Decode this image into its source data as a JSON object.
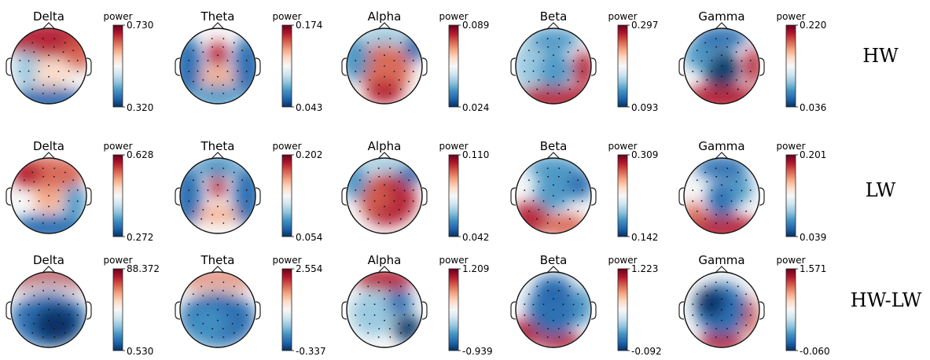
{
  "colormap": {
    "name": "RdBu_r",
    "stops": [
      "#053061",
      "#2166ac",
      "#4393c3",
      "#92c5de",
      "#d1e5f0",
      "#f7f7f7",
      "#fddbc7",
      "#f4a582",
      "#d6604d",
      "#b2182b",
      "#67001f"
    ]
  },
  "colorbar_label": "power",
  "rows": [
    {
      "label": "HW",
      "bands": [
        {
          "name": "Delta",
          "vmax": "0.730",
          "vmin": "0.320"
        },
        {
          "name": "Theta",
          "vmax": "0.174",
          "vmin": "0.043"
        },
        {
          "name": "Alpha",
          "vmax": "0.089",
          "vmin": "0.024"
        },
        {
          "name": "Beta",
          "vmax": "0.297",
          "vmin": "0.093"
        },
        {
          "name": "Gamma",
          "vmax": "0.220",
          "vmin": "0.036"
        }
      ]
    },
    {
      "label": "LW",
      "bands": [
        {
          "name": "Delta",
          "vmax": "0.628",
          "vmin": "0.272"
        },
        {
          "name": "Theta",
          "vmax": "0.202",
          "vmin": "0.054"
        },
        {
          "name": "Alpha",
          "vmax": "0.110",
          "vmin": "0.042"
        },
        {
          "name": "Beta",
          "vmax": "0.309",
          "vmin": "0.142"
        },
        {
          "name": "Gamma",
          "vmax": "0.201",
          "vmin": "0.039"
        }
      ]
    },
    {
      "label": "HW-LW",
      "bands": [
        {
          "name": "Delta",
          "vmax": "88.372",
          "vmin": "0.530"
        },
        {
          "name": "Theta",
          "vmax": "2.554",
          "vmin": "-0.337"
        },
        {
          "name": "Alpha",
          "vmax": "1.209",
          "vmin": "-0.939"
        },
        {
          "name": "Beta",
          "vmax": "1.223",
          "vmin": "-0.092"
        },
        {
          "name": "Gamma",
          "vmax": "1.571",
          "vmin": "-0.060"
        }
      ]
    }
  ]
}
